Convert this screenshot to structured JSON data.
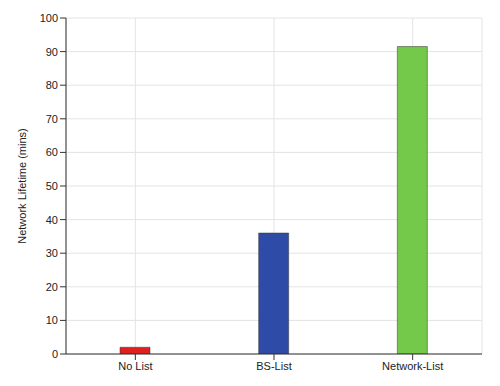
{
  "chart_data": {
    "type": "bar",
    "y_label": "Network Lifetime (mins)",
    "categories": [
      "No List",
      "BS-List",
      "Network-List"
    ],
    "values": [
      2,
      36,
      91.5
    ],
    "colors": [
      "#e02020",
      "#2f4ba8",
      "#74c84a"
    ],
    "ylim": [
      0,
      100
    ],
    "yticks": [
      0,
      10,
      20,
      30,
      40,
      50,
      60,
      70,
      80,
      90,
      100
    ],
    "grid": true
  }
}
